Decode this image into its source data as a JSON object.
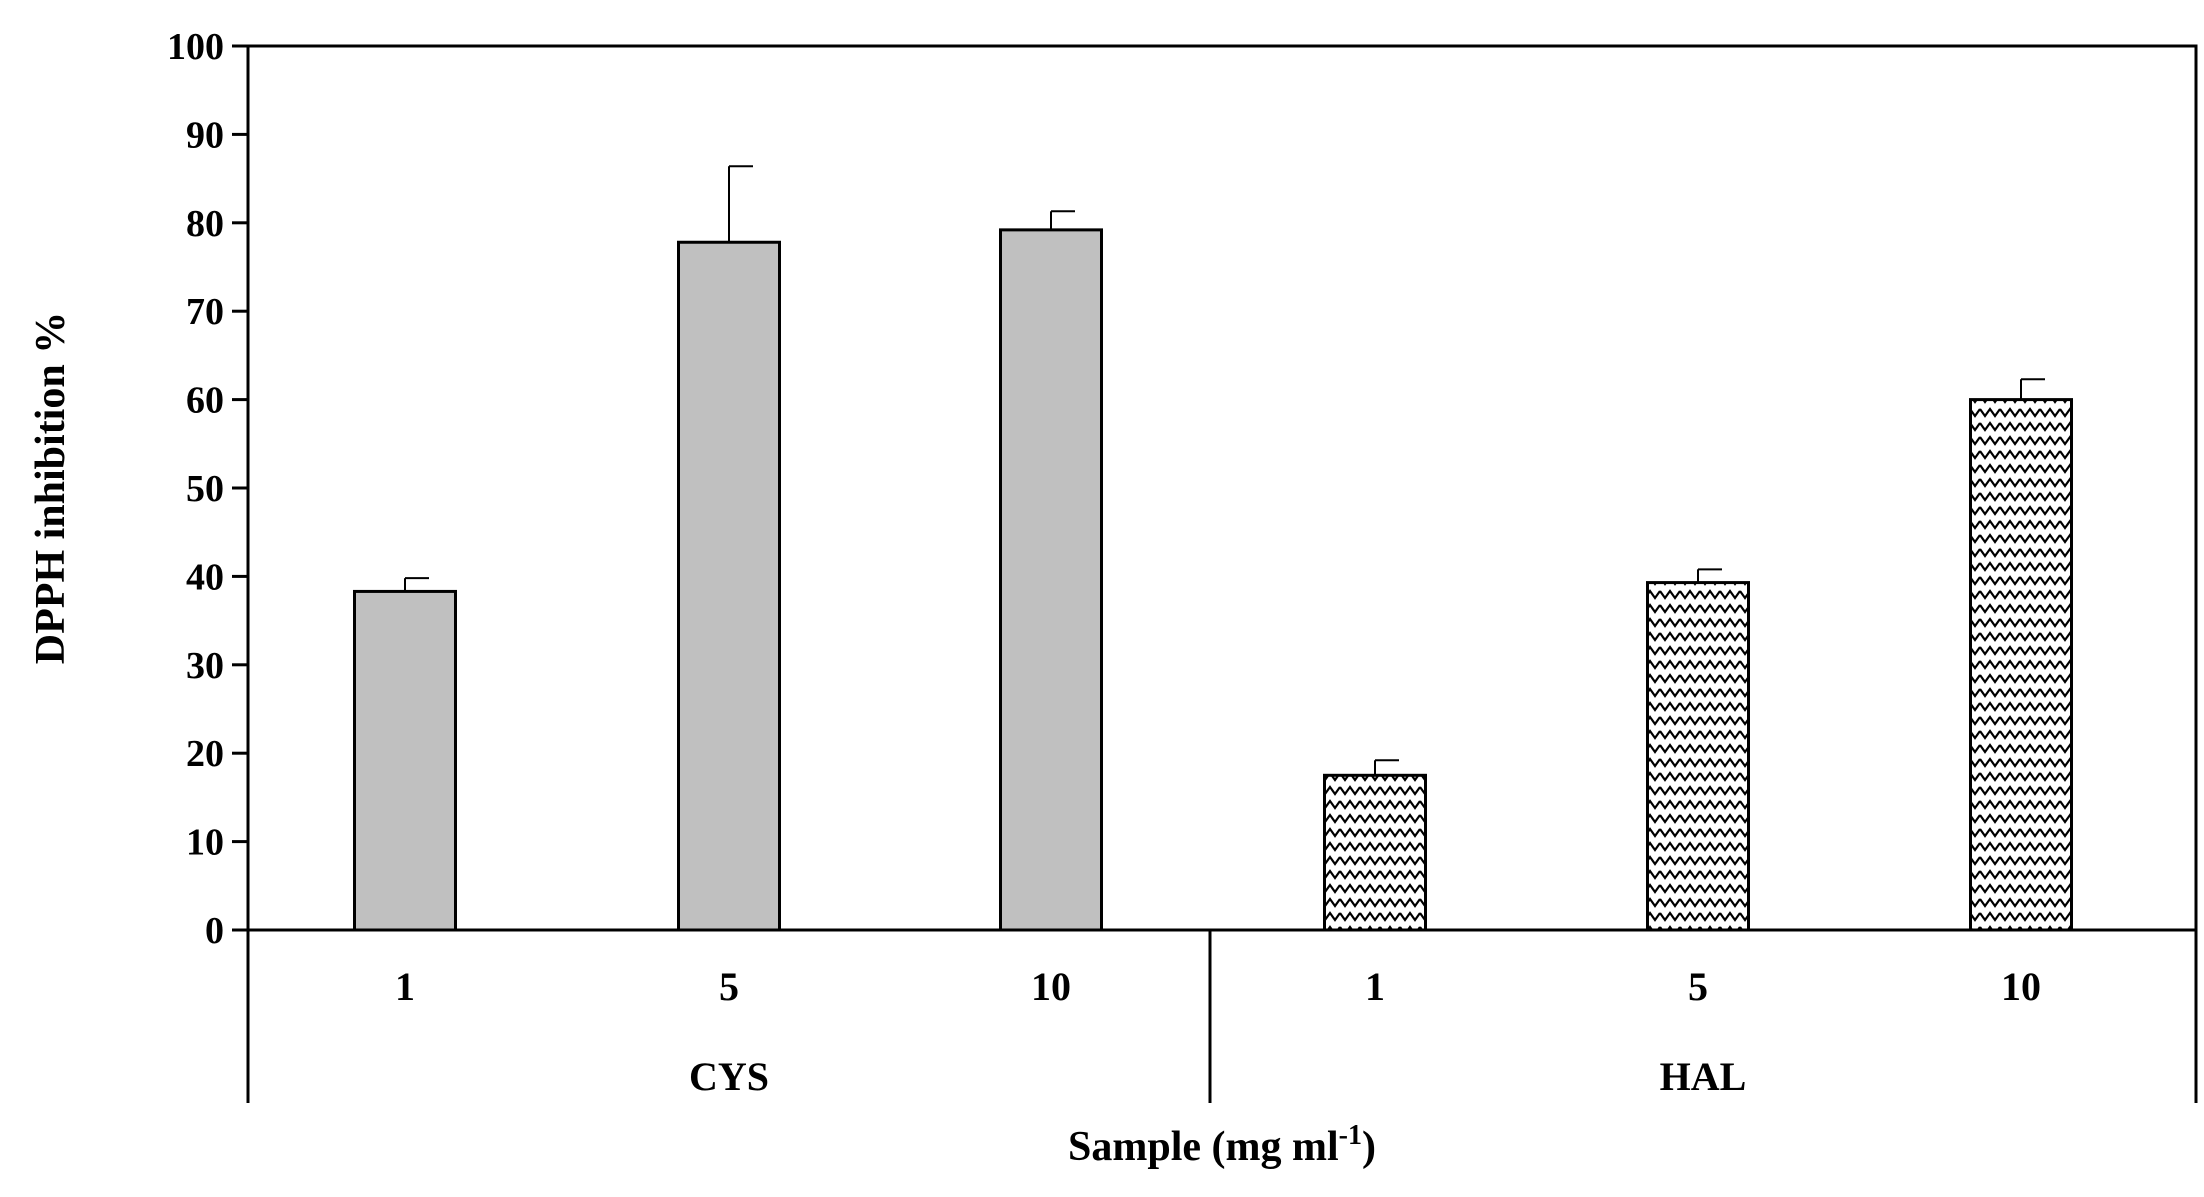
{
  "chart_data": {
    "type": "bar",
    "title": "",
    "ylabel": "DPPH inhibition %",
    "xlabel": {
      "text": "Sample (mg ml",
      "superscript": "-1",
      "suffix": ")"
    },
    "ylim": [
      0,
      100
    ],
    "yticks": [
      "0",
      "10",
      "20",
      "30",
      "40",
      "50",
      "60",
      "70",
      "80",
      "90",
      "100"
    ],
    "grid": false,
    "legend": "none",
    "groups": [
      {
        "name": "CYS",
        "fill": "#c0c0c0",
        "pattern": "solid",
        "categories": [
          "1",
          "5",
          "10"
        ],
        "values": [
          38.3,
          77.8,
          79.2
        ],
        "errors": [
          1.5,
          8.6,
          2.1
        ]
      },
      {
        "name": "HAL",
        "fill": "#ffffff",
        "pattern": "zigzag",
        "categories": [
          "1",
          "5",
          "10"
        ],
        "values": [
          17.5,
          39.3,
          60.0
        ],
        "errors": [
          1.7,
          1.5,
          2.3
        ]
      }
    ],
    "colors": {
      "axis": "#000000",
      "bar_stroke": "#000000",
      "solid_fill": "#c0c0c0",
      "pattern_stroke": "#000000"
    }
  }
}
